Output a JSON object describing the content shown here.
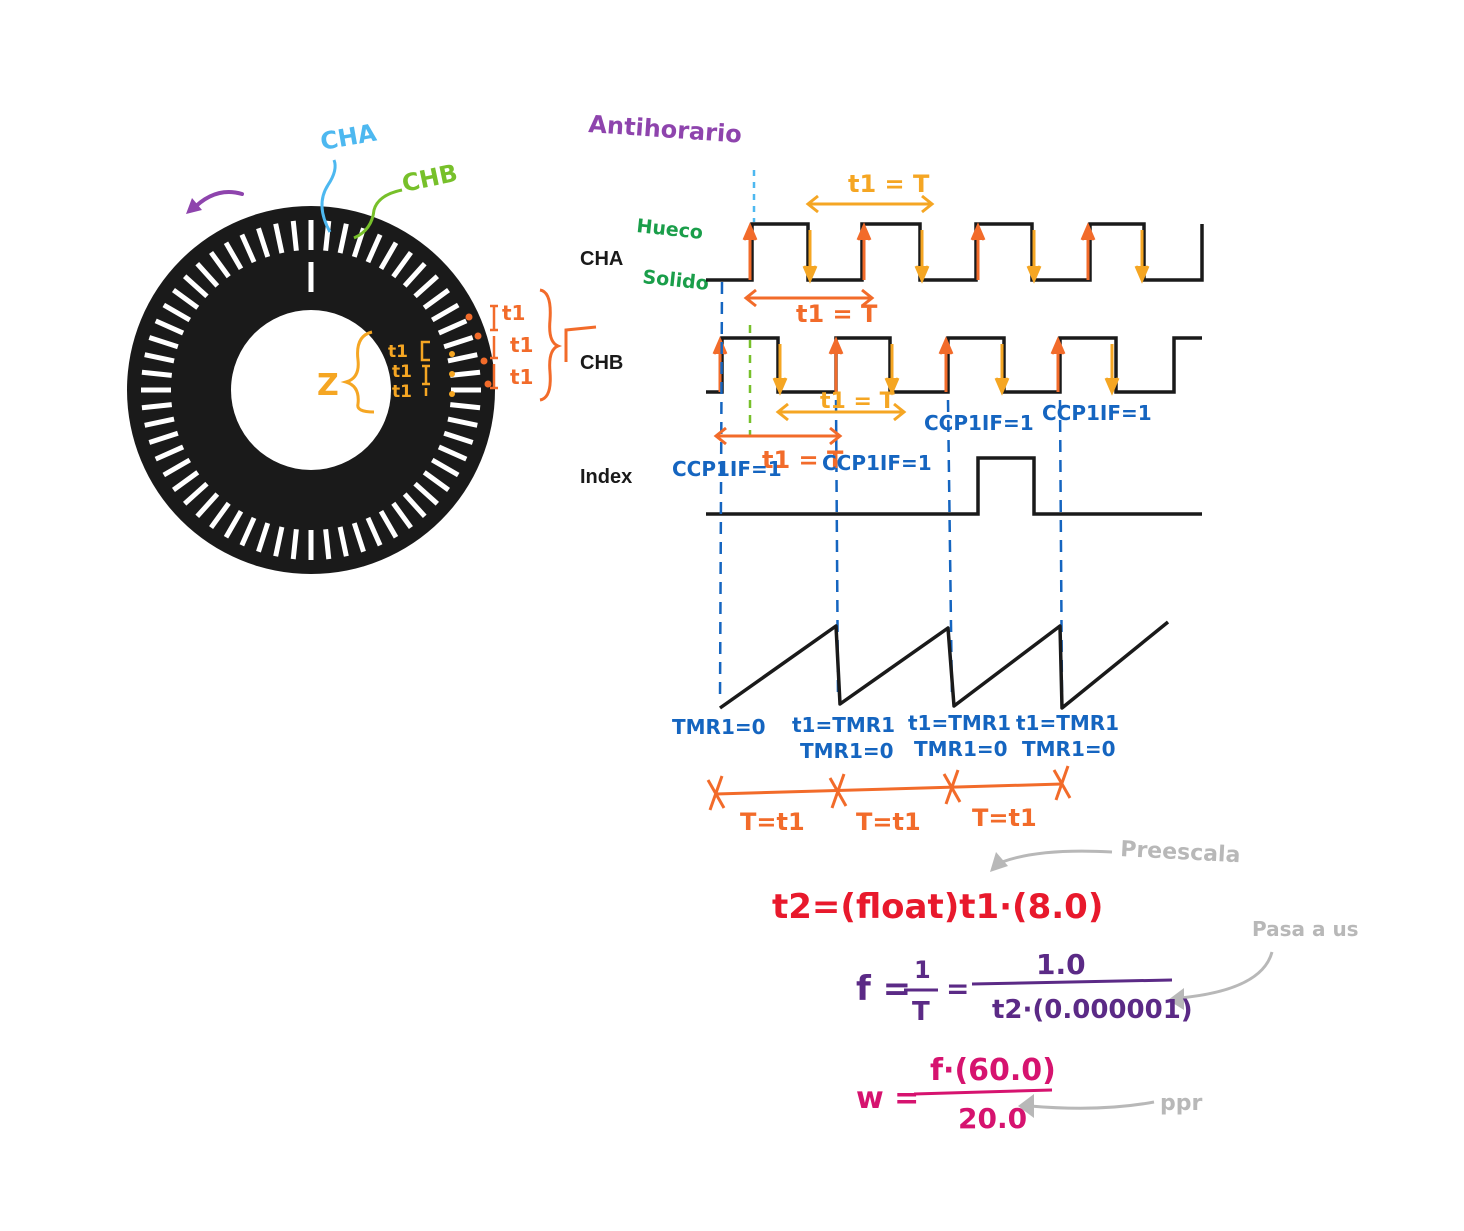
{
  "colors": {
    "black": "#1a1a1a",
    "cha": "#4db8f0",
    "chb": "#77c02a",
    "orange": "#f26b2a",
    "amber": "#f5a623",
    "blue": "#1565c0",
    "green": "#1a9e4a",
    "purple": "#8e44ad",
    "red": "#e8192c",
    "violet": "#5b2a86",
    "magenta": "#d6136f",
    "gray": "#b8b8b8"
  },
  "encoder": {
    "cha_label": "CHA",
    "chb_label": "CHB",
    "z_label": "Z",
    "t1_outer": [
      "t1",
      "t1",
      "t1"
    ],
    "t1_inner": [
      "t1",
      "t1",
      "t1"
    ],
    "slots": 60
  },
  "timing": {
    "direction_label": "Antihorario",
    "cha": {
      "label": "CHA",
      "hueco_label": "Hueco",
      "solido_label": "Solido"
    },
    "chb": {
      "label": "CHB"
    },
    "index": {
      "label": "Index"
    },
    "t1_eq_T_top": "t1 = T",
    "t1_eq_T_cha": "t1 = T",
    "t1_eq_T_chb": "t1 = T",
    "t1_eq_T_bottom": "t1 = T",
    "ccp": [
      "CCP1IF=1",
      "CCP1IF=1",
      "CCP1IF=1",
      "CCP1IF=1"
    ],
    "tmr_first": "TMR1=0",
    "tmr_pairs": [
      {
        "top": "t1=TMR1",
        "bottom": "TMR1=0"
      },
      {
        "top": "t1=TMR1",
        "bottom": "TMR1=0"
      },
      {
        "top": "t1=TMR1",
        "bottom": "TMR1=0"
      }
    ],
    "periods": [
      "T=t1",
      "T=t1",
      "T=t1"
    ]
  },
  "formulas": {
    "prescala_note": "Preescala",
    "t2_formula": "t2=(float)t1·(8.0)",
    "pasa_note": "Pasa a us",
    "f_lhs": "f =",
    "f_num_small": "1",
    "f_den_small": "T",
    "eq": "=",
    "f_num_big": "1.0",
    "f_den_big": "t2·(0.000001)",
    "w_lhs": "w =",
    "w_num": "f·(60.0)",
    "w_den": "20.0",
    "ppr_note": "ppr"
  }
}
